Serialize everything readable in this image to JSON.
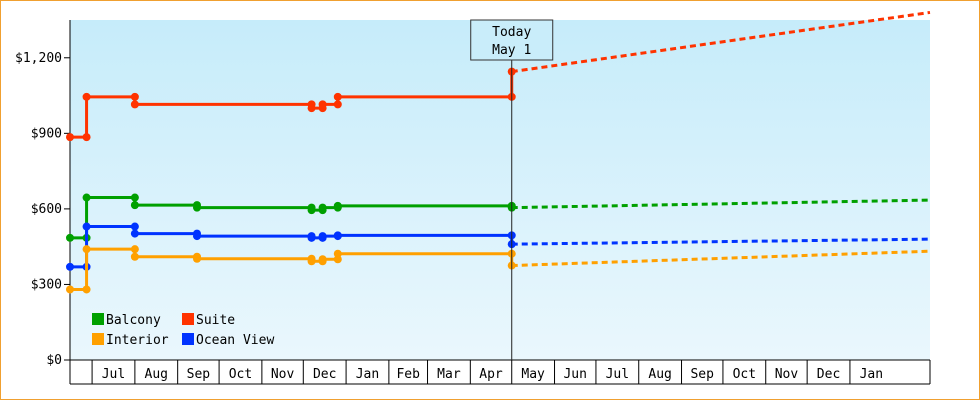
{
  "chart_data": {
    "type": "line",
    "title": "",
    "xlabel": "",
    "ylabel": "",
    "ylim": [
      0,
      1350
    ],
    "y_ticks": [
      {
        "value": 0,
        "label": "$0"
      },
      {
        "value": 300,
        "label": "$300"
      },
      {
        "value": 600,
        "label": "$600"
      },
      {
        "value": 900,
        "label": "$900"
      },
      {
        "value": 1200,
        "label": "$1,200"
      }
    ],
    "x_range": [
      "Jun 15",
      "Feb 28 (next year)"
    ],
    "x_ticks": [
      "Jul",
      "Aug",
      "Sep",
      "Oct",
      "Nov",
      "Dec",
      "Jan",
      "Feb",
      "Mar",
      "Apr",
      "May",
      "Jun",
      "Jul",
      "Aug",
      "Sep",
      "Oct",
      "Nov",
      "Dec",
      "Jan"
    ],
    "today_marker": {
      "line1": "Today",
      "line2": "May 1"
    },
    "legend": [
      {
        "name": "Balcony",
        "color": "#00a000"
      },
      {
        "name": "Suite",
        "color": "#ff3300"
      },
      {
        "name": "Interior",
        "color": "#ffa000"
      },
      {
        "name": "Ocean View",
        "color": "#0033ff"
      }
    ],
    "series": [
      {
        "name": "Suite",
        "color": "#ff3300",
        "history": [
          [
            "Jun 15",
            885
          ],
          [
            "Jun 27",
            885
          ],
          [
            "Jun 27",
            1045
          ],
          [
            "Aug 1",
            1045
          ],
          [
            "Aug 1",
            1015
          ],
          [
            "Dec 7",
            1015
          ],
          [
            "Dec 7",
            1000
          ],
          [
            "Dec 15",
            1000
          ],
          [
            "Dec 15",
            1015
          ],
          [
            "Dec 26",
            1015
          ],
          [
            "Dec 26",
            1045
          ],
          [
            "May 1",
            1045
          ]
        ],
        "forecast": [
          [
            "May 1",
            1145
          ],
          [
            "Feb 28",
            1380
          ]
        ]
      },
      {
        "name": "Balcony",
        "color": "#00a000",
        "history": [
          [
            "Jun 15",
            485
          ],
          [
            "Jun 27",
            485
          ],
          [
            "Jun 27",
            645
          ],
          [
            "Aug 1",
            645
          ],
          [
            "Aug 1",
            615
          ],
          [
            "Sep 15",
            615
          ],
          [
            "Sep 15",
            605
          ],
          [
            "Dec 7",
            605
          ],
          [
            "Dec 7",
            595
          ],
          [
            "Dec 15",
            595
          ],
          [
            "Dec 15",
            605
          ],
          [
            "Dec 26",
            605
          ],
          [
            "Dec 26",
            612
          ],
          [
            "May 1",
            612
          ]
        ],
        "forecast": [
          [
            "May 1",
            605
          ],
          [
            "Feb 28",
            635
          ]
        ]
      },
      {
        "name": "Ocean View",
        "color": "#0033ff",
        "history": [
          [
            "Jun 15",
            370
          ],
          [
            "Jun 27",
            370
          ],
          [
            "Jun 27",
            530
          ],
          [
            "Aug 1",
            530
          ],
          [
            "Aug 1",
            502
          ],
          [
            "Sep 15",
            502
          ],
          [
            "Sep 15",
            492
          ],
          [
            "Dec 7",
            492
          ],
          [
            "Dec 7",
            485
          ],
          [
            "Dec 15",
            485
          ],
          [
            "Dec 15",
            492
          ],
          [
            "Dec 26",
            492
          ],
          [
            "Dec 26",
            495
          ],
          [
            "May 1",
            495
          ]
        ],
        "forecast": [
          [
            "May 1",
            460
          ],
          [
            "Feb 28",
            480
          ]
        ]
      },
      {
        "name": "Interior",
        "color": "#ffa000",
        "history": [
          [
            "Jun 15",
            280
          ],
          [
            "Jun 27",
            280
          ],
          [
            "Jun 27",
            440
          ],
          [
            "Aug 1",
            440
          ],
          [
            "Aug 1",
            410
          ],
          [
            "Sep 15",
            410
          ],
          [
            "Sep 15",
            402
          ],
          [
            "Dec 7",
            402
          ],
          [
            "Dec 7",
            392
          ],
          [
            "Dec 15",
            392
          ],
          [
            "Dec 15",
            400
          ],
          [
            "Dec 26",
            400
          ],
          [
            "Dec 26",
            422
          ],
          [
            "May 1",
            422
          ]
        ],
        "forecast": [
          [
            "May 1",
            375
          ],
          [
            "Feb 28",
            432
          ]
        ]
      }
    ]
  }
}
